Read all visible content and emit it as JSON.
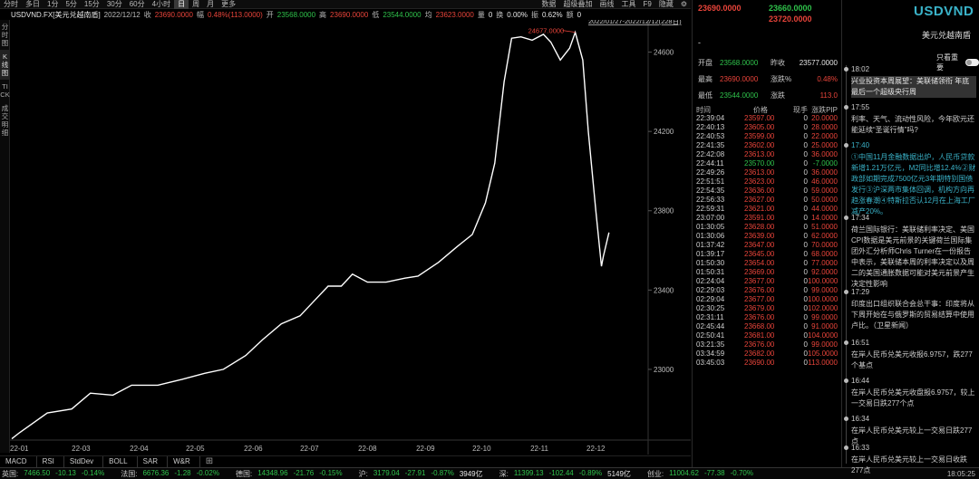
{
  "toolbar": {
    "periods": [
      "分时",
      "多日",
      "1分",
      "5分",
      "15分",
      "30分",
      "60分",
      "4小时",
      "日",
      "周",
      "月",
      "更多"
    ],
    "active_period": "日",
    "right_tools": [
      "数据",
      "超级叠加",
      "画线",
      "工具",
      "F9",
      "隐藏"
    ]
  },
  "info": {
    "symbol": "USDVND.FX[美元兑越南盾]",
    "date": "2022/12/12",
    "close_label": "收",
    "close": "23690.0000",
    "change_label": "幅",
    "change": "0.48%(113.0000)",
    "open_label": "开",
    "open": "23568.0000",
    "high_label": "高",
    "high": "23690.0000",
    "low_label": "低",
    "low": "23544.0000",
    "avg_label": "均",
    "avg": "23623.0000",
    "volume_label": "量",
    "volume": "0",
    "turnover_label": "换",
    "turnover": "0.00%",
    "amplitude_label": "振",
    "amplitude": "0.62%",
    "amount_label": "额",
    "amount": "0"
  },
  "left_strip": [
    "分时图",
    "K线图",
    "TICK",
    "成交明细"
  ],
  "chart_data": {
    "type": "line",
    "range_label": "2022/01/27-2022/12/12(228日)",
    "peak_label": "24677.0000",
    "x_labels": [
      "22-01",
      "22-03",
      "22-04",
      "22-05",
      "22-06",
      "22-07",
      "22-08",
      "22-09",
      "22-10",
      "22-11",
      "22-12"
    ],
    "y_ticks": [
      23000,
      23400,
      23800,
      24200,
      24600
    ],
    "ylim": [
      22680,
      24735
    ],
    "x": [
      "2022-01-27",
      "2022-01-31",
      "2022-02-15",
      "2022-02-28",
      "2022-03-10",
      "2022-03-22",
      "2022-04-01",
      "2022-04-15",
      "2022-04-28",
      "2022-05-10",
      "2022-05-20",
      "2022-06-01",
      "2022-06-10",
      "2022-06-20",
      "2022-06-30",
      "2022-07-08",
      "2022-07-15",
      "2022-07-22",
      "2022-07-28",
      "2022-08-05",
      "2022-08-15",
      "2022-08-25",
      "2022-09-01",
      "2022-09-12",
      "2022-09-22",
      "2022-09-30",
      "2022-10-07",
      "2022-10-12",
      "2022-10-17",
      "2022-10-21",
      "2022-10-26",
      "2022-11-01",
      "2022-11-07",
      "2022-11-11",
      "2022-11-16",
      "2022-11-21",
      "2022-11-24",
      "2022-11-28",
      "2022-12-01",
      "2022-12-05",
      "2022-12-08",
      "2022-12-09",
      "2022-12-12"
    ],
    "values": [
      22650,
      22680,
      22780,
      22800,
      22880,
      22870,
      22920,
      22920,
      22950,
      22980,
      23000,
      23070,
      23150,
      23230,
      23270,
      23350,
      23420,
      23420,
      23480,
      23440,
      23440,
      23460,
      23470,
      23540,
      23620,
      23680,
      23840,
      24040,
      24450,
      24670,
      24677,
      24660,
      24690,
      24650,
      24560,
      24620,
      24700,
      24560,
      24200,
      23800,
      23520,
      23570,
      23690
    ]
  },
  "bottom_tabs": [
    "MACD",
    "RSI",
    "StdDev",
    "BOLL",
    "SAR",
    "W&R"
  ],
  "ticker": [
    {
      "name": "英国:",
      "value": "7466.50",
      "change": "-10.13",
      "pct": "-0.14%"
    },
    {
      "name": "法国:",
      "value": "6676.36",
      "change": "-1.28",
      "pct": "-0.02%"
    },
    {
      "name": "德国:",
      "value": "14348.96",
      "change": "-21.76",
      "pct": "-0.15%"
    },
    {
      "name": "沪:",
      "value": "3179.04",
      "change": "-27.91",
      "pct": "-0.87%",
      "vol": "3949亿"
    },
    {
      "name": "深:",
      "value": "11399.13",
      "change": "-102.44",
      "pct": "-0.89%",
      "vol": "5149亿"
    },
    {
      "name": "创业:",
      "value": "11004.62",
      "change": "-77.38",
      "pct": "-0.70%"
    }
  ],
  "clock": "18:05:25",
  "quote": {
    "p1": "23690.0000",
    "p2": "23660.0000",
    "p3": "23720.0000",
    "dash": "-",
    "open_label": "开盘",
    "open": "23568.0000",
    "prev_label": "昨收",
    "prev": "23577.0000",
    "high_label": "最高",
    "high": "23690.0000",
    "pct_label": "涨跌%",
    "pct": "0.48%",
    "low_label": "最低",
    "low": "23544.0000",
    "chg_label": "涨跌",
    "chg": "113.0",
    "cols": [
      "时间",
      "价格",
      "现手",
      "涨跌PIP"
    ],
    "trades": [
      {
        "t": "22:39:04",
        "p": "23597.00",
        "v": "0",
        "d": "20.0000",
        "c": "red"
      },
      {
        "t": "22:40:13",
        "p": "23605.00",
        "v": "0",
        "d": "28.0000",
        "c": "red"
      },
      {
        "t": "22:40:53",
        "p": "23599.00",
        "v": "0",
        "d": "22.0000",
        "c": "red"
      },
      {
        "t": "22:41:35",
        "p": "23602.00",
        "v": "0",
        "d": "25.0000",
        "c": "red"
      },
      {
        "t": "22:42:08",
        "p": "23613.00",
        "v": "0",
        "d": "36.0000",
        "c": "red"
      },
      {
        "t": "22:44:11",
        "p": "23570.00",
        "v": "0",
        "d": "-7.0000",
        "c": "green"
      },
      {
        "t": "22:49:26",
        "p": "23613.00",
        "v": "0",
        "d": "36.0000",
        "c": "red"
      },
      {
        "t": "22:51:51",
        "p": "23623.00",
        "v": "0",
        "d": "46.0000",
        "c": "red"
      },
      {
        "t": "22:54:35",
        "p": "23636.00",
        "v": "0",
        "d": "59.0000",
        "c": "red"
      },
      {
        "t": "22:56:33",
        "p": "23627.00",
        "v": "0",
        "d": "50.0000",
        "c": "red"
      },
      {
        "t": "22:59:31",
        "p": "23621.00",
        "v": "0",
        "d": "44.0000",
        "c": "red"
      },
      {
        "t": "23:07:00",
        "p": "23591.00",
        "v": "0",
        "d": "14.0000",
        "c": "red"
      },
      {
        "t": "01:30:05",
        "p": "23628.00",
        "v": "0",
        "d": "51.0000",
        "c": "red"
      },
      {
        "t": "01:30:06",
        "p": "23639.00",
        "v": "0",
        "d": "62.0000",
        "c": "red"
      },
      {
        "t": "01:37:42",
        "p": "23647.00",
        "v": "0",
        "d": "70.0000",
        "c": "red"
      },
      {
        "t": "01:39:17",
        "p": "23645.00",
        "v": "0",
        "d": "68.0000",
        "c": "red"
      },
      {
        "t": "01:50:30",
        "p": "23654.00",
        "v": "0",
        "d": "77.0000",
        "c": "red"
      },
      {
        "t": "01:50:31",
        "p": "23669.00",
        "v": "0",
        "d": "92.0000",
        "c": "red"
      },
      {
        "t": "02:24:04",
        "p": "23677.00",
        "v": "0",
        "d": "100.0000",
        "c": "red"
      },
      {
        "t": "02:29:03",
        "p": "23676.00",
        "v": "0",
        "d": "99.0000",
        "c": "red"
      },
      {
        "t": "02:29:04",
        "p": "23677.00",
        "v": "0",
        "d": "100.0000",
        "c": "red"
      },
      {
        "t": "02:30:25",
        "p": "23679.00",
        "v": "0",
        "d": "102.0000",
        "c": "red"
      },
      {
        "t": "02:31:11",
        "p": "23676.00",
        "v": "0",
        "d": "99.0000",
        "c": "red"
      },
      {
        "t": "02:45:44",
        "p": "23668.00",
        "v": "0",
        "d": "91.0000",
        "c": "red"
      },
      {
        "t": "02:50:41",
        "p": "23681.00",
        "v": "0",
        "d": "104.0000",
        "c": "red"
      },
      {
        "t": "03:21:35",
        "p": "23676.00",
        "v": "0",
        "d": "99.0000",
        "c": "red"
      },
      {
        "t": "03:34:59",
        "p": "23682.00",
        "v": "0",
        "d": "105.0000",
        "c": "red"
      },
      {
        "t": "03:45:03",
        "p": "23690.00",
        "v": "0",
        "d": "113.0000",
        "c": "red"
      }
    ]
  },
  "news": {
    "title": "USDVND",
    "subtitle": "美元兑越南盾",
    "toggle_label": "只看重要",
    "items": [
      {
        "time": "18:02",
        "body": "兴业投资本周展望：美联储领衔 年底最后一个超级央行周",
        "style": "box"
      },
      {
        "time": "17:55",
        "body": "利率、天气、流动性风险，今年欧元还能延续“圣诞行情”吗?",
        "style": "normal"
      },
      {
        "time": "17:40",
        "body": "①中国11月金融数据出炉，人民币贷款新增1.21万亿元，M2同比增12.4%②财政部如期完成7500亿元3年期特别国债发行③沪深两市集体回调，机构方向再趋涨春潮④特斯拉否认12月在上海工厂减产20%。",
        "style": "hl"
      },
      {
        "time": "17:34",
        "body": "荷兰国际银行：美联储利率决定、美国CPI数据是美元前景的关键荷兰国际集团外汇分析师Chris Turner在一份报告中表示，美联储本周的利率决定以及周二的美国通胀数据可能对美元前景产生决定性影响",
        "style": "normal"
      },
      {
        "time": "17:29",
        "body": "印度出口组织联合会总干事：印度将从下周开始在与俄罗斯的贸易结算中使用卢比。（卫星新闻）",
        "style": "normal"
      },
      {
        "time": "16:51",
        "body": "在岸人民币兑美元收报6.9757，跌277个基点",
        "style": "normal"
      },
      {
        "time": "16:44",
        "body": "在岸人民币兑美元收盘报6.9757，较上一交易日跌277个点",
        "style": "normal"
      },
      {
        "time": "16:34",
        "body": "在岸人民币兑美元较上一交易日跌277点",
        "style": "normal"
      },
      {
        "time": "16:33",
        "body": "在岸人民币兑美元较上一交易日收跌277点",
        "style": "normal"
      }
    ]
  },
  "colors": {
    "up": "#e8443a",
    "down": "#2fc24b",
    "accent": "#3ab3c9",
    "line": "#ffffff"
  }
}
